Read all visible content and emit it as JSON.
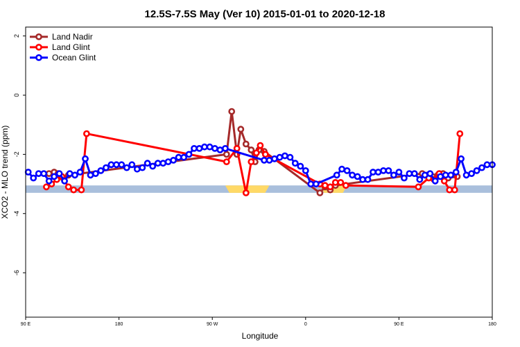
{
  "chart_data": {
    "type": "line",
    "title": "12.5S-7.5S May (Ver 10)   2015-01-01 to 2020-12-18",
    "xlabel": "Longitude",
    "ylabel": "XCO2 - MLO trend (ppm)",
    "xlim": [
      0,
      360
    ],
    "ylim": [
      -7.5,
      2.3
    ],
    "xticks": [
      {
        "value": 0,
        "label": "90 E"
      },
      {
        "value": 72,
        "label": "180"
      },
      {
        "value": 144,
        "label": "90 W"
      },
      {
        "value": 216,
        "label": "0"
      },
      {
        "value": 288,
        "label": "90 E"
      },
      {
        "value": 360,
        "label": "180"
      }
    ],
    "yticks": [
      -6,
      -4,
      -2,
      0,
      2
    ],
    "legend_position": "top-left",
    "colors": {
      "land_nadir": "#a52a2a",
      "land_glint": "#ff0000",
      "ocean_glint": "#0000ff",
      "ocean_strip": "#a9bfdc",
      "land_strip": "#ffd966"
    },
    "series": [
      {
        "name": "Land Nadir",
        "color": "#a52a2a",
        "points": [
          [
            18,
            -2.65
          ],
          [
            22,
            -2.6
          ],
          [
            25,
            -2.65
          ],
          [
            29,
            -2.8
          ],
          [
            33,
            -2.7
          ],
          [
            155,
            -2.0
          ],
          [
            159,
            -0.55
          ],
          [
            163,
            -2.0
          ],
          [
            166,
            -1.15
          ],
          [
            170,
            -1.65
          ],
          [
            174,
            -1.85
          ],
          [
            177,
            -2.25
          ],
          [
            180,
            -1.85
          ],
          [
            184,
            -1.9
          ],
          [
            227,
            -3.3
          ],
          [
            231,
            -3.1
          ],
          [
            235,
            -3.2
          ],
          [
            239,
            -3.05
          ],
          [
            306,
            -2.65
          ],
          [
            310,
            -2.7
          ],
          [
            314,
            -2.75
          ],
          [
            318,
            -2.7
          ],
          [
            322,
            -2.65
          ],
          [
            326,
            -2.8
          ],
          [
            333,
            -2.75
          ]
        ]
      },
      {
        "name": "Land Glint",
        "color": "#ff0000",
        "points": [
          [
            16,
            -3.1
          ],
          [
            20,
            -3.0
          ],
          [
            24,
            -2.85
          ],
          [
            28,
            -2.75
          ],
          [
            33,
            -3.1
          ],
          [
            37,
            -3.2
          ],
          [
            43,
            -3.2
          ],
          [
            47,
            -1.3
          ],
          [
            155,
            -2.25
          ],
          [
            163,
            -1.8
          ],
          [
            170,
            -3.3
          ],
          [
            174,
            -2.25
          ],
          [
            178,
            -1.95
          ],
          [
            181,
            -1.7
          ],
          [
            185,
            -2.0
          ],
          [
            227,
            -3.0
          ],
          [
            231,
            -3.05
          ],
          [
            235,
            -3.1
          ],
          [
            239,
            -2.95
          ],
          [
            243,
            -2.95
          ],
          [
            247,
            -3.05
          ],
          [
            303,
            -3.1
          ],
          [
            311,
            -2.8
          ],
          [
            315,
            -2.85
          ],
          [
            319,
            -2.65
          ],
          [
            323,
            -2.9
          ],
          [
            327,
            -3.2
          ],
          [
            331,
            -3.2
          ],
          [
            335,
            -1.3
          ]
        ]
      },
      {
        "name": "Ocean Glint",
        "color": "#0000ff",
        "points": [
          [
            2,
            -2.6
          ],
          [
            6,
            -2.8
          ],
          [
            10,
            -2.65
          ],
          [
            14,
            -2.65
          ],
          [
            18,
            -2.9
          ],
          [
            22,
            -2.75
          ],
          [
            26,
            -2.65
          ],
          [
            30,
            -2.9
          ],
          [
            34,
            -2.65
          ],
          [
            38,
            -2.7
          ],
          [
            42,
            -2.6
          ],
          [
            46,
            -2.15
          ],
          [
            50,
            -2.7
          ],
          [
            54,
            -2.65
          ],
          [
            58,
            -2.55
          ],
          [
            62,
            -2.45
          ],
          [
            66,
            -2.35
          ],
          [
            70,
            -2.35
          ],
          [
            74,
            -2.35
          ],
          [
            78,
            -2.45
          ],
          [
            82,
            -2.35
          ],
          [
            86,
            -2.5
          ],
          [
            90,
            -2.45
          ],
          [
            94,
            -2.3
          ],
          [
            98,
            -2.4
          ],
          [
            102,
            -2.3
          ],
          [
            106,
            -2.3
          ],
          [
            110,
            -2.25
          ],
          [
            114,
            -2.2
          ],
          [
            118,
            -2.1
          ],
          [
            122,
            -2.1
          ],
          [
            126,
            -2.0
          ],
          [
            130,
            -1.8
          ],
          [
            134,
            -1.8
          ],
          [
            138,
            -1.75
          ],
          [
            142,
            -1.75
          ],
          [
            146,
            -1.8
          ],
          [
            150,
            -1.85
          ],
          [
            154,
            -1.8
          ],
          [
            184,
            -2.2
          ],
          [
            188,
            -2.2
          ],
          [
            192,
            -2.15
          ],
          [
            196,
            -2.1
          ],
          [
            200,
            -2.05
          ],
          [
            204,
            -2.1
          ],
          [
            208,
            -2.3
          ],
          [
            212,
            -2.4
          ],
          [
            216,
            -2.55
          ],
          [
            220,
            -3.0
          ],
          [
            224,
            -3.0
          ],
          [
            240,
            -2.7
          ],
          [
            244,
            -2.5
          ],
          [
            248,
            -2.55
          ],
          [
            252,
            -2.7
          ],
          [
            256,
            -2.75
          ],
          [
            260,
            -2.85
          ],
          [
            264,
            -2.85
          ],
          [
            268,
            -2.6
          ],
          [
            272,
            -2.6
          ],
          [
            276,
            -2.55
          ],
          [
            280,
            -2.55
          ],
          [
            284,
            -2.7
          ],
          [
            288,
            -2.6
          ],
          [
            292,
            -2.8
          ],
          [
            296,
            -2.65
          ],
          [
            300,
            -2.65
          ],
          [
            304,
            -2.85
          ],
          [
            308,
            -2.7
          ],
          [
            312,
            -2.65
          ],
          [
            316,
            -2.9
          ],
          [
            320,
            -2.75
          ],
          [
            324,
            -2.7
          ],
          [
            328,
            -2.7
          ],
          [
            332,
            -2.6
          ],
          [
            336,
            -2.15
          ],
          [
            340,
            -2.7
          ],
          [
            344,
            -2.65
          ],
          [
            348,
            -2.55
          ],
          [
            352,
            -2.45
          ],
          [
            356,
            -2.35
          ],
          [
            360,
            -2.35
          ]
        ]
      }
    ],
    "reference_strip": {
      "y_low": -3.3,
      "y_high": -3.05,
      "ocean_color": "#a9bfdc",
      "land_color": "#ffd966",
      "land_segments": [
        [
          154,
          188
        ],
        [
          227,
          248
        ]
      ]
    }
  }
}
